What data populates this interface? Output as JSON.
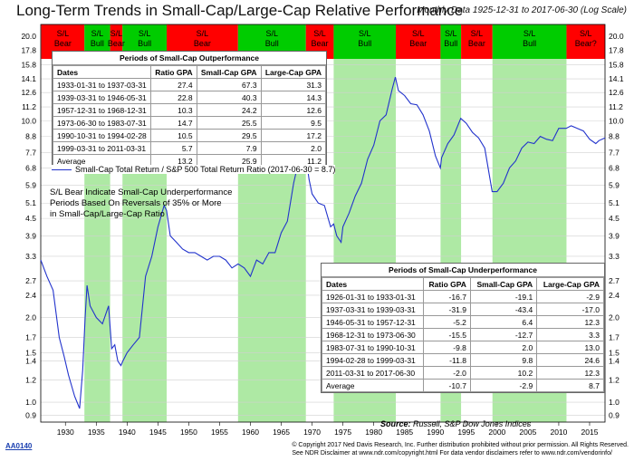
{
  "header": {
    "title": "Long-Term Trends in Small-Cap/Large-Cap Relative Performance",
    "subtitle": "Monthly Data 1925-12-31 to 2017-06-30 (Log Scale)"
  },
  "chart_data": {
    "type": "line",
    "yscale": "log",
    "ylim": [
      0.85,
      22
    ],
    "xlim": [
      1926,
      2017.5
    ],
    "x_ticks": [
      1930,
      1935,
      1940,
      1945,
      1950,
      1955,
      1960,
      1965,
      1970,
      1975,
      1980,
      1985,
      1990,
      1995,
      2000,
      2005,
      2010,
      2015
    ],
    "y_ticks": [
      0.9,
      1.0,
      1.2,
      1.4,
      1.5,
      1.7,
      2.0,
      2.4,
      2.7,
      3.3,
      3.9,
      4.5,
      5.1,
      5.9,
      6.8,
      7.7,
      8.8,
      10.0,
      11.2,
      12.6,
      14.1,
      15.8,
      17.8,
      20.0
    ],
    "grid": true,
    "series": [
      {
        "name": "Small-Cap Total Return / S&P 500 Total Return Ratio (2017-06-30 = 8.7)",
        "color": "#2233cc",
        "x": [
          1926.0,
          1927.0,
          1928.0,
          1929.0,
          1929.8,
          1930.5,
          1931.5,
          1932.3,
          1932.8,
          1933.2,
          1933.5,
          1934.0,
          1935.0,
          1936.0,
          1937.0,
          1937.5,
          1938.0,
          1938.5,
          1939.0,
          1939.3,
          1940.0,
          1941.0,
          1942.0,
          1943.0,
          1944.0,
          1945.0,
          1946.0,
          1946.4,
          1947.0,
          1948.0,
          1949.0,
          1950.0,
          1951.0,
          1952.0,
          1953.0,
          1954.0,
          1955.0,
          1956.0,
          1957.0,
          1958.0,
          1959.0,
          1960.0,
          1961.0,
          1962.0,
          1963.0,
          1964.0,
          1965.0,
          1966.0,
          1967.0,
          1968.0,
          1968.9,
          1969.5,
          1970.0,
          1971.0,
          1972.0,
          1973.0,
          1973.5,
          1974.0,
          1974.7,
          1975.0,
          1976.0,
          1977.0,
          1978.0,
          1979.0,
          1980.0,
          1981.0,
          1982.0,
          1983.0,
          1983.5,
          1984.0,
          1985.0,
          1986.0,
          1987.0,
          1988.0,
          1989.0,
          1990.0,
          1990.8,
          1991.0,
          1992.0,
          1993.0,
          1994.1,
          1995.0,
          1996.0,
          1997.0,
          1998.0,
          1999.2,
          2000.0,
          2001.0,
          2002.0,
          2003.0,
          2004.0,
          2005.0,
          2006.0,
          2007.0,
          2008.0,
          2009.0,
          2010.0,
          2011.2,
          2012.0,
          2013.0,
          2014.0,
          2015.0,
          2016.0,
          2016.5,
          2017.5
        ],
        "y": [
          3.2,
          2.8,
          2.5,
          1.7,
          1.45,
          1.25,
          1.05,
          0.95,
          1.3,
          2.0,
          2.6,
          2.2,
          2.0,
          1.9,
          2.2,
          1.55,
          1.6,
          1.4,
          1.35,
          1.4,
          1.5,
          1.6,
          1.7,
          2.8,
          3.3,
          4.2,
          5.0,
          4.8,
          3.9,
          3.7,
          3.5,
          3.4,
          3.4,
          3.3,
          3.2,
          3.3,
          3.3,
          3.2,
          3.0,
          3.1,
          3.0,
          2.8,
          3.2,
          3.1,
          3.4,
          3.4,
          4.0,
          4.4,
          6.0,
          7.5,
          7.8,
          6.2,
          5.5,
          5.1,
          5.0,
          4.2,
          4.3,
          3.9,
          3.7,
          4.2,
          4.7,
          5.4,
          6.0,
          7.3,
          8.2,
          10.0,
          10.5,
          13.0,
          14.3,
          12.8,
          12.3,
          11.5,
          11.4,
          10.5,
          9.2,
          7.5,
          6.8,
          7.4,
          8.3,
          8.9,
          10.2,
          9.8,
          9.1,
          8.7,
          8.0,
          5.6,
          5.6,
          6.0,
          6.8,
          7.2,
          8.0,
          8.4,
          8.3,
          8.8,
          8.6,
          8.5,
          9.4,
          9.4,
          9.6,
          9.4,
          9.2,
          8.6,
          8.3,
          8.5,
          8.7
        ]
      }
    ],
    "bands": [
      {
        "label": "S/L Bear",
        "start": 1926.08,
        "end": 1933.08,
        "color": "#ff0000"
      },
      {
        "label": "S/L Bull",
        "start": 1933.08,
        "end": 1937.25,
        "color": "#00cc00"
      },
      {
        "label": "S/L Bear",
        "start": 1937.25,
        "end": 1939.25,
        "color": "#ff0000"
      },
      {
        "label": "S/L Bull",
        "start": 1939.25,
        "end": 1946.42,
        "color": "#00cc00"
      },
      {
        "label": "S/L Bear",
        "start": 1946.42,
        "end": 1957.99,
        "color": "#ff0000"
      },
      {
        "label": "S/L Bull",
        "start": 1957.99,
        "end": 1968.99,
        "color": "#00cc00"
      },
      {
        "label": "S/L Bear",
        "start": 1968.99,
        "end": 1973.5,
        "color": "#ff0000"
      },
      {
        "label": "S/L Bull",
        "start": 1973.5,
        "end": 1983.58,
        "color": "#00cc00"
      },
      {
        "label": "S/L Bear",
        "start": 1983.58,
        "end": 1990.83,
        "color": "#ff0000"
      },
      {
        "label": "S/L Bull",
        "start": 1990.83,
        "end": 1994.16,
        "color": "#00cc00"
      },
      {
        "label": "S/L Bear",
        "start": 1994.16,
        "end": 1999.25,
        "color": "#ff0000"
      },
      {
        "label": "S/L Bull",
        "start": 1999.25,
        "end": 2011.25,
        "color": "#00cc00"
      },
      {
        "label": "S/L Bear?",
        "start": 2011.25,
        "end": 2017.5,
        "color": "#ff0000"
      }
    ],
    "legend_position": "top-left"
  },
  "outperformance_table": {
    "caption": "Periods of Small-Cap Outperformance",
    "headers": [
      "Dates",
      "Ratio GPA",
      "Small-Cap GPA",
      "Large-Cap GPA"
    ],
    "rows": [
      [
        "1933-01-31 to 1937-03-31",
        "27.4",
        "67.3",
        "31.3"
      ],
      [
        "1939-03-31 to 1946-05-31",
        "22.8",
        "40.3",
        "14.3"
      ],
      [
        "1957-12-31 to 1968-12-31",
        "10.3",
        "24.2",
        "12.6"
      ],
      [
        "1973-06-30 to 1983-07-31",
        "14.7",
        "25.5",
        "9.5"
      ],
      [
        "1990-10-31 to 1994-02-28",
        "10.5",
        "29.5",
        "17.2"
      ],
      [
        "1999-03-31 to 2011-03-31",
        "5.7",
        "7.9",
        "2.0"
      ],
      [
        "Average",
        "13.2",
        "25.9",
        "11.2"
      ]
    ]
  },
  "underperformance_table": {
    "caption": "Periods of Small-Cap Underperformance",
    "headers": [
      "Dates",
      "Ratio GPA",
      "Small-Cap GPA",
      "Large-Cap GPA"
    ],
    "rows": [
      [
        "1926-01-31 to 1933-01-31",
        "-16.7",
        "-19.1",
        "-2.9"
      ],
      [
        "1937-03-31 to 1939-03-31",
        "-31.9",
        "-43.4",
        "-17.0"
      ],
      [
        "1946-05-31 to 1957-12-31",
        "-5.2",
        "6.4",
        "12.3"
      ],
      [
        "1968-12-31 to 1973-06-30",
        "-15.5",
        "-12.7",
        "3.3"
      ],
      [
        "1983-07-31 to 1990-10-31",
        "-9.8",
        "2.0",
        "13.0"
      ],
      [
        "1994-02-28 to 1999-03-31",
        "-11.8",
        "9.8",
        "24.6"
      ],
      [
        "2011-03-31 to 2017-06-30",
        "-2.0",
        "10.2",
        "12.3"
      ],
      [
        "Average",
        "-10.7",
        "-2.9",
        "8.7"
      ]
    ]
  },
  "notes": {
    "line1": "S/L Bear Indicate Small-Cap Underperformance",
    "line2": "Periods Based On Reversals of 35% or More",
    "line3": "in Small-Cap/Large-Cap Ratio"
  },
  "source": {
    "label": "Source:",
    "text": "Russell, S&P Dow Jones Indices"
  },
  "footer": {
    "code": "AA0140",
    "copyright_line1": "© Copyright 2017 Ned Davis Research, Inc. Further distribution prohibited without prior permission. All Rights Reserved.",
    "copyright_line2": "See NDR Disclaimer at www.ndr.com/copyright.html  For data vendor disclaimers refer to www.ndr.com/vendorinfo/"
  }
}
